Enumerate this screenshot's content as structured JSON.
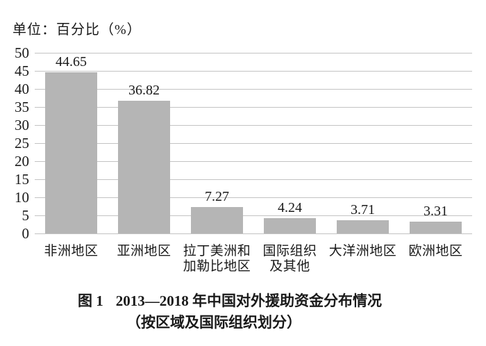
{
  "figure": {
    "unit_label": "单位：百分比（%）",
    "caption_line1_prefix": "图 1",
    "caption_line1_text": "2013—2018 年中国对外援助资金分布情况",
    "caption_line2": "（按区域及国际组织划分）"
  },
  "chart_data": {
    "type": "bar",
    "title": "图 1 2013—2018 年中国对外援助资金分布情况（按区域及国际组织划分）",
    "unit": "百分比（%）",
    "categories": [
      "非洲地区",
      "亚洲地区",
      "拉丁美洲和\n加勒比地区",
      "国际组织\n及其他",
      "大洋洲地区",
      "欧洲地区"
    ],
    "values": [
      44.65,
      36.82,
      7.27,
      4.24,
      3.71,
      3.31
    ],
    "value_labels": [
      "44.65",
      "36.82",
      "7.27",
      "4.24",
      "3.71",
      "3.31"
    ],
    "xlabel": "",
    "ylabel": "",
    "ylim": [
      0,
      50
    ],
    "yticks": [
      0,
      5,
      10,
      15,
      20,
      25,
      30,
      35,
      40,
      45,
      50
    ],
    "grid": "horizontal",
    "legend": "none",
    "bar_color": "#b5b5b5",
    "gridline_color": "#c3c3c3",
    "text_color": "#1a1a1a"
  }
}
